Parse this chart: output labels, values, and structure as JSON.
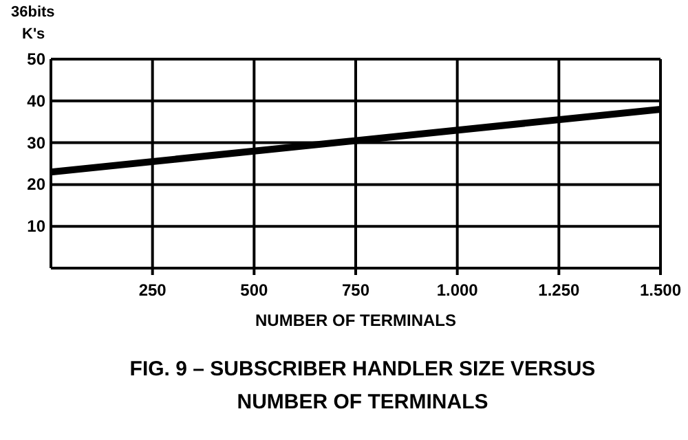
{
  "chart_data": {
    "type": "line",
    "title": "FIG. 9 – SUBSCRIBER HANDLER SIZE VERSUS\nNUMBER OF TERMINALS",
    "xlabel": "NUMBER OF TERMINALS",
    "ylabel": "36bits\nK's",
    "x": [
      0,
      1500
    ],
    "series": [
      {
        "color": "#000000",
        "values": [
          23,
          38
        ]
      }
    ],
    "xlim": [
      0,
      1500
    ],
    "ylim": [
      0,
      50
    ],
    "xticks": [
      {
        "value": 250,
        "label": "250"
      },
      {
        "value": 500,
        "label": "500"
      },
      {
        "value": 750,
        "label": "750"
      },
      {
        "value": 1000,
        "label": "1.000"
      },
      {
        "value": 1250,
        "label": "1.250"
      },
      {
        "value": 1500,
        "label": "1.500"
      }
    ],
    "yticks": [
      10,
      20,
      30,
      40,
      50
    ],
    "grid": true,
    "marker": "none",
    "line_style": "solid"
  }
}
